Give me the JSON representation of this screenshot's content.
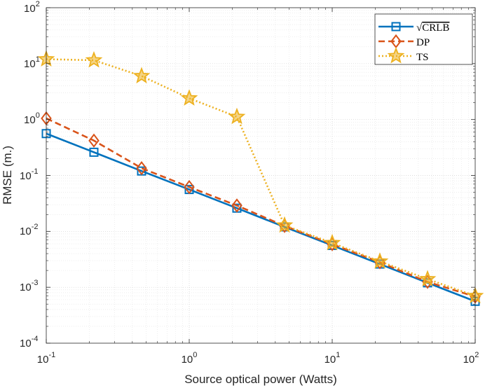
{
  "chart_data": {
    "type": "line",
    "xscale": "log",
    "yscale": "log",
    "xlabel": "Source optical power (Watts)",
    "ylabel": "RMSE (m.)",
    "xlim": [
      0.1,
      100
    ],
    "ylim": [
      0.0001,
      100
    ],
    "grid": true,
    "minor_grid": true,
    "legend_position": "top-right",
    "x_ticks": [
      {
        "base": "10",
        "exp": "-1",
        "value": 0.1
      },
      {
        "base": "10",
        "exp": "0",
        "value": 1
      },
      {
        "base": "10",
        "exp": "1",
        "value": 10
      },
      {
        "base": "10",
        "exp": "2",
        "value": 100
      }
    ],
    "y_ticks": [
      {
        "base": "10",
        "exp": "-4",
        "value": 0.0001
      },
      {
        "base": "10",
        "exp": "-3",
        "value": 0.001
      },
      {
        "base": "10",
        "exp": "-2",
        "value": 0.01
      },
      {
        "base": "10",
        "exp": "-1",
        "value": 0.1
      },
      {
        "base": "10",
        "exp": "0",
        "value": 1
      },
      {
        "base": "10",
        "exp": "1",
        "value": 10
      },
      {
        "base": "10",
        "exp": "2",
        "value": 100
      }
    ],
    "x": [
      0.1,
      0.2154,
      0.4642,
      1,
      2.154,
      4.642,
      10,
      21.54,
      46.42,
      100
    ],
    "series": [
      {
        "name": "√CRLB",
        "legend_symbol": "√",
        "legend_text": "CRLB",
        "color": "#0072BD",
        "marker": "square",
        "dash": "solid",
        "values": [
          0.56,
          0.26,
          0.12,
          0.056,
          0.026,
          0.012,
          0.0056,
          0.0026,
          0.0012,
          0.00056
        ]
      },
      {
        "name": "DP",
        "legend_text": "DP",
        "color": "#D95319",
        "marker": "diamond",
        "dash": "dashed",
        "values": [
          1.05,
          0.42,
          0.135,
          0.062,
          0.029,
          0.0125,
          0.0059,
          0.0028,
          0.00125,
          0.00068
        ]
      },
      {
        "name": "TS",
        "legend_text": "TS",
        "color": "#EDB120",
        "marker": "star",
        "dash": "dotted",
        "values": [
          12,
          11.5,
          6,
          2.4,
          1.12,
          0.0128,
          0.0062,
          0.0029,
          0.0014,
          0.0007
        ]
      }
    ]
  }
}
